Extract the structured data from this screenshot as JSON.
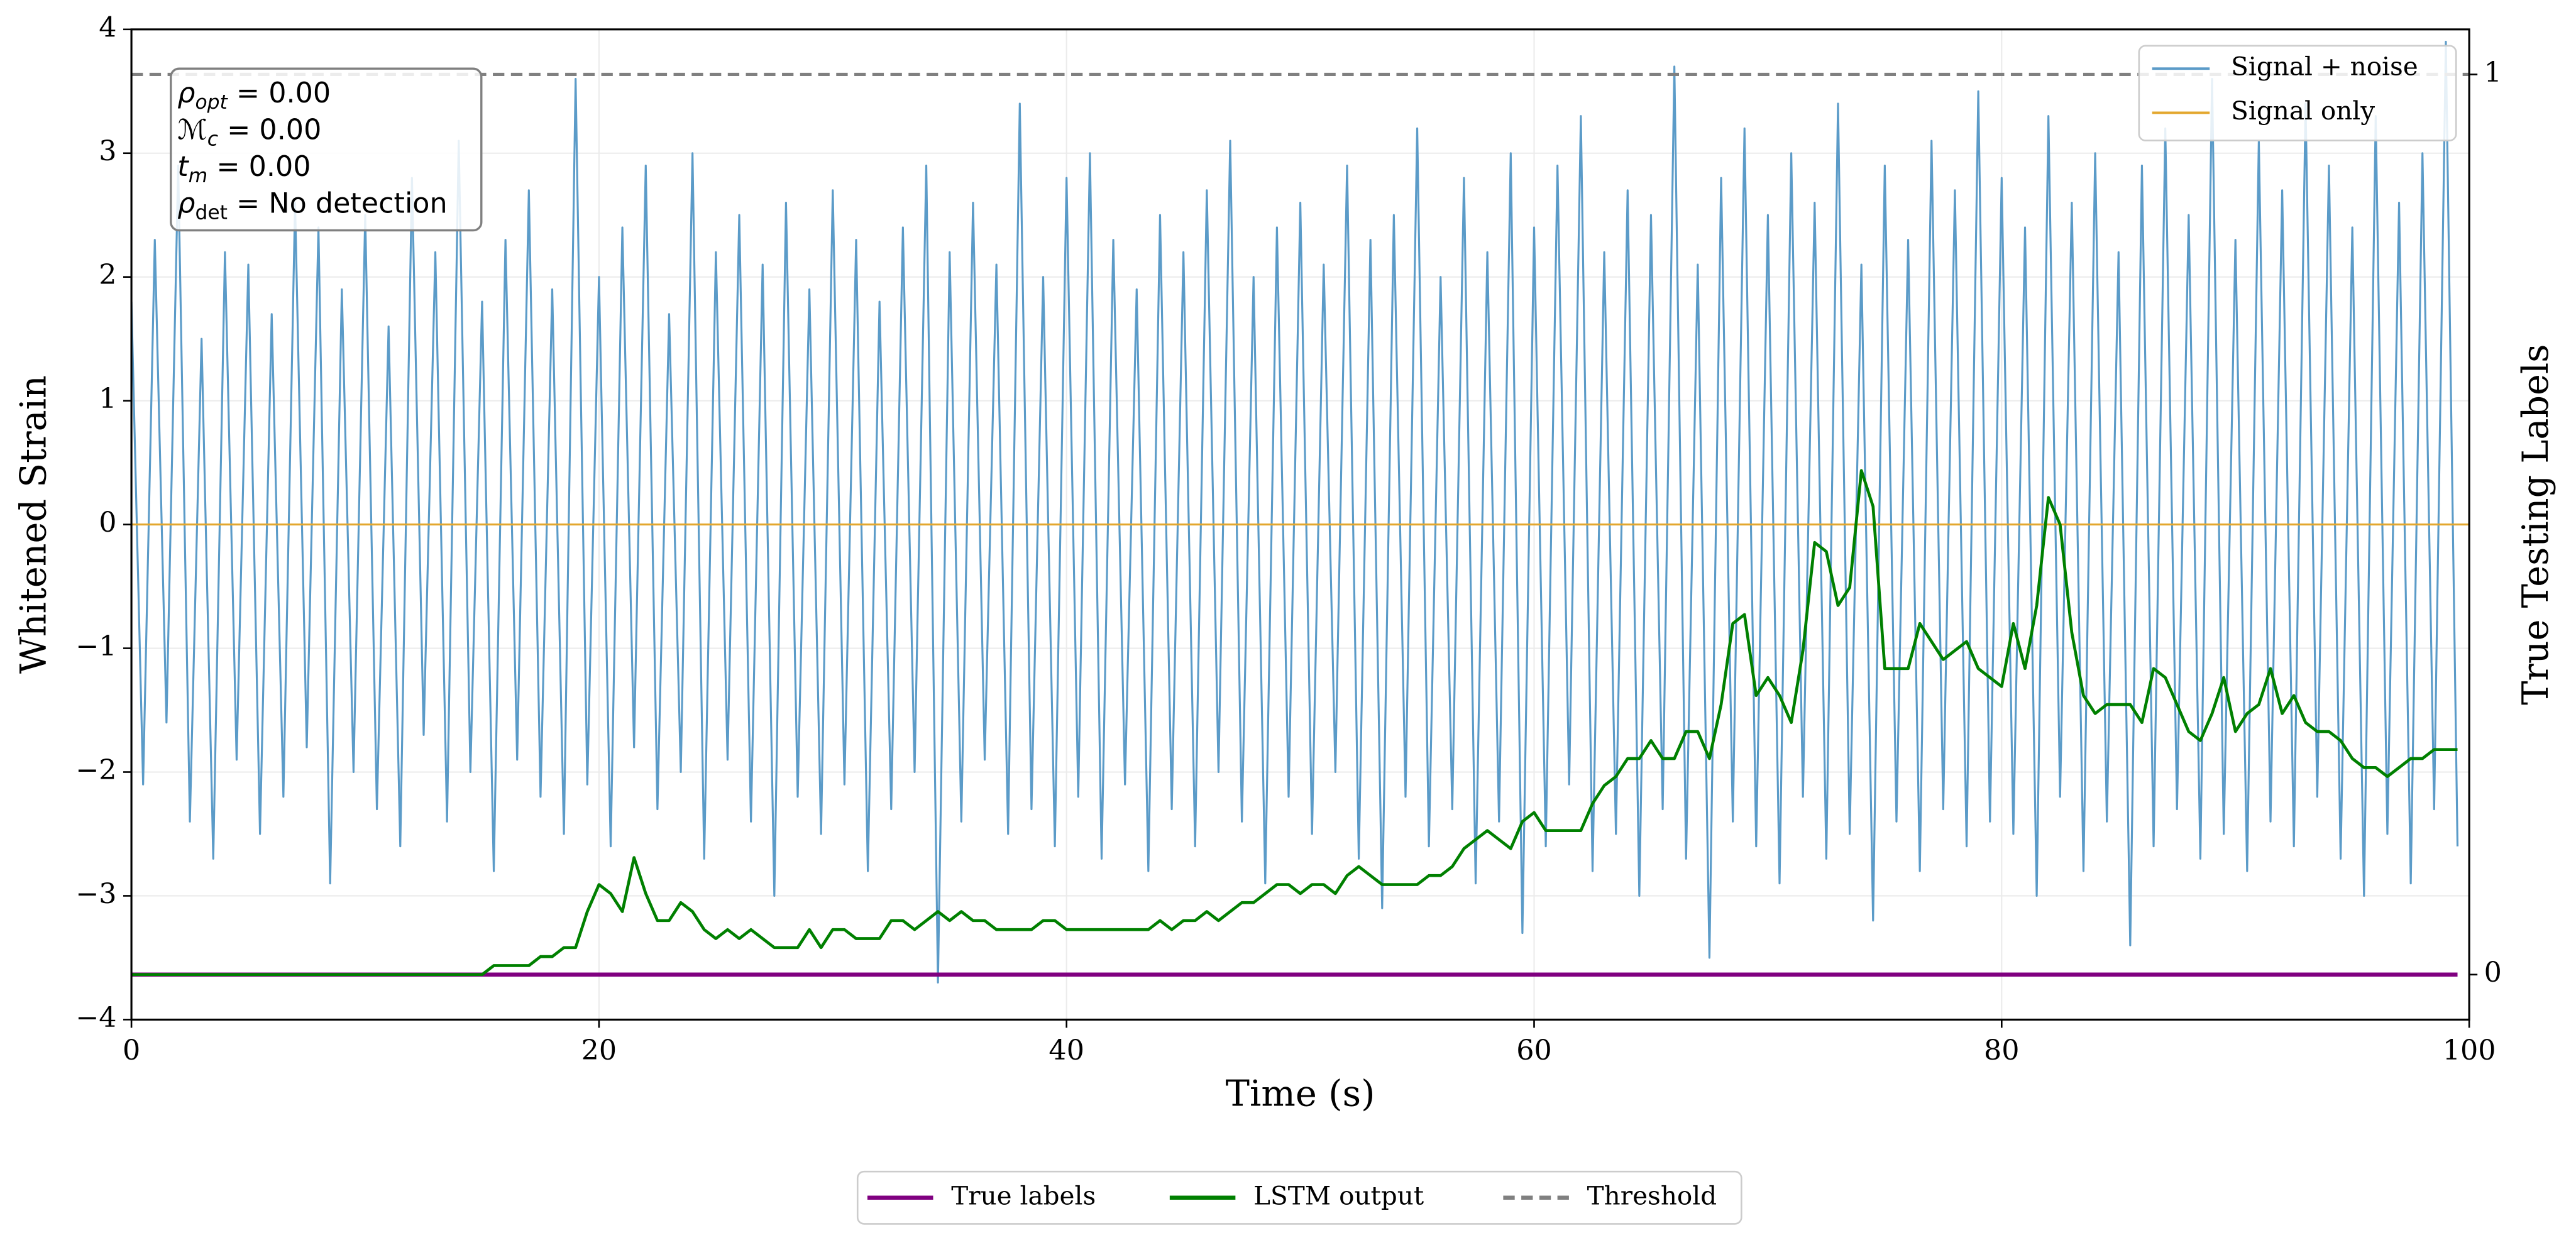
{
  "chart_data": {
    "type": "line",
    "xlabel": "Time (s)",
    "ylabel": "Whitened Strain",
    "y2label": "True Testing Labels",
    "xlim": [
      0,
      100
    ],
    "xticks": [
      0,
      20,
      40,
      60,
      80,
      100
    ],
    "ylim": [
      -4,
      4
    ],
    "yticks": [
      {
        "value": -4,
        "label": "−4"
      },
      {
        "value": -3,
        "label": "−3"
      },
      {
        "value": -2,
        "label": "−2"
      },
      {
        "value": -1,
        "label": "−1"
      },
      0,
      1,
      2,
      3,
      4
    ],
    "y2lim": [
      -0.05,
      1.05
    ],
    "y2ticks": [
      0,
      1
    ],
    "grid": true,
    "x": [
      0,
      0.5,
      1,
      1.5,
      2,
      2.5,
      3,
      3.5,
      4,
      4.5,
      5,
      5.5,
      6,
      6.5,
      7,
      7.5,
      8,
      8.5,
      9,
      9.5,
      10,
      10.5,
      11,
      11.5,
      12,
      12.5,
      13,
      13.5,
      14,
      14.5,
      15,
      15.5,
      16,
      16.5,
      17,
      17.5,
      18,
      18.5,
      19,
      19.5,
      20,
      20.5,
      21,
      21.5,
      22,
      22.5,
      23,
      23.5,
      24,
      24.5,
      25,
      25.5,
      26,
      26.5,
      27,
      27.5,
      28,
      28.5,
      29,
      29.5,
      30,
      30.5,
      31,
      31.5,
      32,
      32.5,
      33,
      33.5,
      34,
      34.5,
      35,
      35.5,
      36,
      36.5,
      37,
      37.5,
      38,
      38.5,
      39,
      39.5,
      40,
      40.5,
      41,
      41.5,
      42,
      42.5,
      43,
      43.5,
      44,
      44.5,
      45,
      45.5,
      46,
      46.5,
      47,
      47.5,
      48,
      48.5,
      49,
      49.5,
      50,
      50.5,
      51,
      51.5,
      52,
      52.5,
      53,
      53.5,
      54,
      54.5,
      55,
      55.5,
      56,
      56.5,
      57,
      57.5,
      58,
      58.5,
      59,
      59.5,
      60,
      60.5,
      61,
      61.5,
      62,
      62.5,
      63,
      63.5,
      64,
      64.5,
      65,
      65.5,
      66,
      66.5,
      67,
      67.5,
      68,
      68.5,
      69,
      69.5,
      70,
      70.5,
      71,
      71.5,
      72,
      72.5,
      73,
      73.5,
      74,
      74.5,
      75,
      75.5,
      76,
      76.5,
      77,
      77.5,
      78,
      78.5,
      79,
      79.5,
      80,
      80.5,
      81,
      81.5,
      82,
      82.5,
      83,
      83.5,
      84,
      84.5,
      85,
      85.5,
      86,
      86.5,
      87,
      87.5,
      88,
      88.5,
      89,
      89.5,
      90,
      90.5,
      91,
      91.5,
      92,
      92.5,
      93,
      93.5,
      94,
      94.5,
      95,
      95.5,
      96,
      96.5,
      97,
      97.5,
      98,
      98.5,
      99,
      99.5
    ],
    "series": [
      {
        "name": "Signal + noise",
        "color": "#5b9bc8",
        "width": 1.2,
        "legend": "upper right",
        "values": [
          1.8,
          -2.1,
          2.3,
          -1.6,
          2.9,
          -2.4,
          1.5,
          -2.7,
          2.2,
          -1.9,
          2.1,
          -2.5,
          1.7,
          -2.2,
          2.6,
          -1.8,
          2.4,
          -2.9,
          1.9,
          -2.0,
          2.5,
          -2.3,
          1.6,
          -2.6,
          2.8,
          -1.7,
          2.2,
          -2.4,
          3.1,
          -2.0,
          1.8,
          -2.8,
          2.3,
          -1.9,
          2.7,
          -2.2,
          1.9,
          -2.5,
          3.6,
          -2.1,
          2.0,
          -2.6,
          2.4,
          -1.8,
          2.9,
          -2.3,
          1.7,
          -2.0,
          3.0,
          -2.7,
          2.2,
          -1.9,
          2.5,
          -2.4,
          2.1,
          -3.0,
          2.6,
          -2.2,
          1.9,
          -2.5,
          2.7,
          -2.1,
          2.3,
          -2.8,
          1.8,
          -2.3,
          2.4,
          -2.0,
          2.9,
          -3.7,
          2.2,
          -2.4,
          2.6,
          -1.9,
          2.1,
          -2.5,
          3.4,
          -2.3,
          2.0,
          -2.6,
          2.8,
          -2.2,
          3.0,
          -2.7,
          2.3,
          -2.1,
          1.9,
          -2.8,
          2.5,
          -2.3,
          2.2,
          -2.6,
          2.7,
          -2.0,
          3.1,
          -2.4,
          2.0,
          -2.9,
          2.4,
          -2.2,
          2.6,
          -2.5,
          2.1,
          -2.0,
          2.9,
          -2.7,
          2.3,
          -3.1,
          2.5,
          -2.2,
          3.2,
          -2.6,
          2.0,
          -2.3,
          2.8,
          -2.9,
          2.2,
          -2.4,
          3.0,
          -3.3,
          2.4,
          -2.6,
          2.9,
          -2.1,
          3.3,
          -2.8,
          2.2,
          -2.5,
          2.7,
          -3.0,
          2.5,
          -2.3,
          3.7,
          -2.7,
          2.1,
          -3.5,
          2.8,
          -2.4,
          3.2,
          -2.6,
          2.5,
          -2.9,
          3.0,
          -2.2,
          2.6,
          -2.7,
          3.4,
          -2.5,
          2.1,
          -3.2,
          2.9,
          -2.4,
          2.3,
          -2.8,
          3.1,
          -2.3,
          2.7,
          -2.6,
          3.5,
          -2.4,
          2.8,
          -2.5,
          2.4,
          -3.0,
          3.3,
          -2.2,
          2.6,
          -2.8,
          3.0,
          -2.4,
          2.2,
          -3.4,
          2.9,
          -2.6,
          3.2,
          -2.3,
          2.5,
          -2.7,
          3.6,
          -2.5,
          2.3,
          -2.8,
          3.1,
          -2.4,
          2.7,
          -2.6,
          3.4,
          -2.2,
          2.9,
          -2.7,
          2.4,
          -3.0,
          3.3,
          -2.5,
          2.6,
          -2.9,
          3.0,
          -2.3,
          3.9,
          -2.6
        ]
      },
      {
        "name": "Signal only",
        "color": "#e3a72f",
        "width": 1.2,
        "legend": "upper right",
        "x": [
          0,
          100
        ],
        "values": [
          0,
          0
        ]
      },
      {
        "name": "True labels",
        "color": "#800080",
        "width": 2.5,
        "legend": "lower center",
        "axis": "y2",
        "x": [
          0,
          99.5
        ],
        "values": [
          0,
          0
        ]
      },
      {
        "name": "LSTM output",
        "color": "#008000",
        "width": 1.8,
        "legend": "lower center",
        "axis": "y2",
        "values": [
          0,
          0,
          0,
          0,
          0,
          0,
          0,
          0,
          0,
          0,
          0,
          0,
          0,
          0,
          0,
          0,
          0,
          0,
          0,
          0,
          0,
          0,
          0,
          0,
          0,
          0,
          0,
          0,
          0,
          0,
          0,
          0.01,
          0.01,
          0.01,
          0.01,
          0.02,
          0.02,
          0.03,
          0.03,
          0.07,
          0.1,
          0.09,
          0.07,
          0.13,
          0.09,
          0.06,
          0.06,
          0.08,
          0.07,
          0.05,
          0.04,
          0.05,
          0.04,
          0.05,
          0.04,
          0.03,
          0.03,
          0.03,
          0.05,
          0.03,
          0.05,
          0.05,
          0.04,
          0.04,
          0.04,
          0.06,
          0.06,
          0.05,
          0.06,
          0.07,
          0.06,
          0.07,
          0.06,
          0.06,
          0.05,
          0.05,
          0.05,
          0.05,
          0.06,
          0.06,
          0.05,
          0.05,
          0.05,
          0.05,
          0.05,
          0.05,
          0.05,
          0.05,
          0.06,
          0.05,
          0.06,
          0.06,
          0.07,
          0.06,
          0.07,
          0.08,
          0.08,
          0.09,
          0.1,
          0.1,
          0.09,
          0.1,
          0.1,
          0.09,
          0.11,
          0.12,
          0.11,
          0.1,
          0.1,
          0.1,
          0.1,
          0.11,
          0.11,
          0.12,
          0.14,
          0.15,
          0.16,
          0.15,
          0.14,
          0.17,
          0.18,
          0.16,
          0.16,
          0.16,
          0.16,
          0.19,
          0.21,
          0.22,
          0.24,
          0.24,
          0.26,
          0.24,
          0.24,
          0.27,
          0.27,
          0.24,
          0.3,
          0.39,
          0.4,
          0.31,
          0.33,
          0.31,
          0.28,
          0.36,
          0.48,
          0.47,
          0.41,
          0.43,
          0.56,
          0.52,
          0.34,
          0.34,
          0.34,
          0.39,
          0.37,
          0.35,
          0.36,
          0.37,
          0.34,
          0.33,
          0.32,
          0.39,
          0.34,
          0.41,
          0.53,
          0.5,
          0.38,
          0.31,
          0.29,
          0.3,
          0.3,
          0.3,
          0.28,
          0.34,
          0.33,
          0.3,
          0.27,
          0.26,
          0.29,
          0.33,
          0.27,
          0.29,
          0.3,
          0.34,
          0.29,
          0.31,
          0.28,
          0.27,
          0.27,
          0.26,
          0.24,
          0.23,
          0.23,
          0.22,
          0.23,
          0.24,
          0.24,
          0.25,
          0.25,
          0.25
        ]
      }
    ],
    "threshold": {
      "name": "Threshold",
      "value": 1,
      "color": "#808080",
      "axis": "y2",
      "linestyle": "dashed",
      "legend": "lower center"
    },
    "annotations": [
      {
        "symbol": "ρ",
        "subscript": "opt",
        "text": " = 0.00"
      },
      {
        "symbol": "ℳ",
        "subscript": "c",
        "text": " = 0.00"
      },
      {
        "symbol": "t",
        "subscript": "m",
        "text": " = 0.00"
      },
      {
        "symbol": "ρ",
        "subscript": "det",
        "text": " = No detection"
      }
    ]
  }
}
